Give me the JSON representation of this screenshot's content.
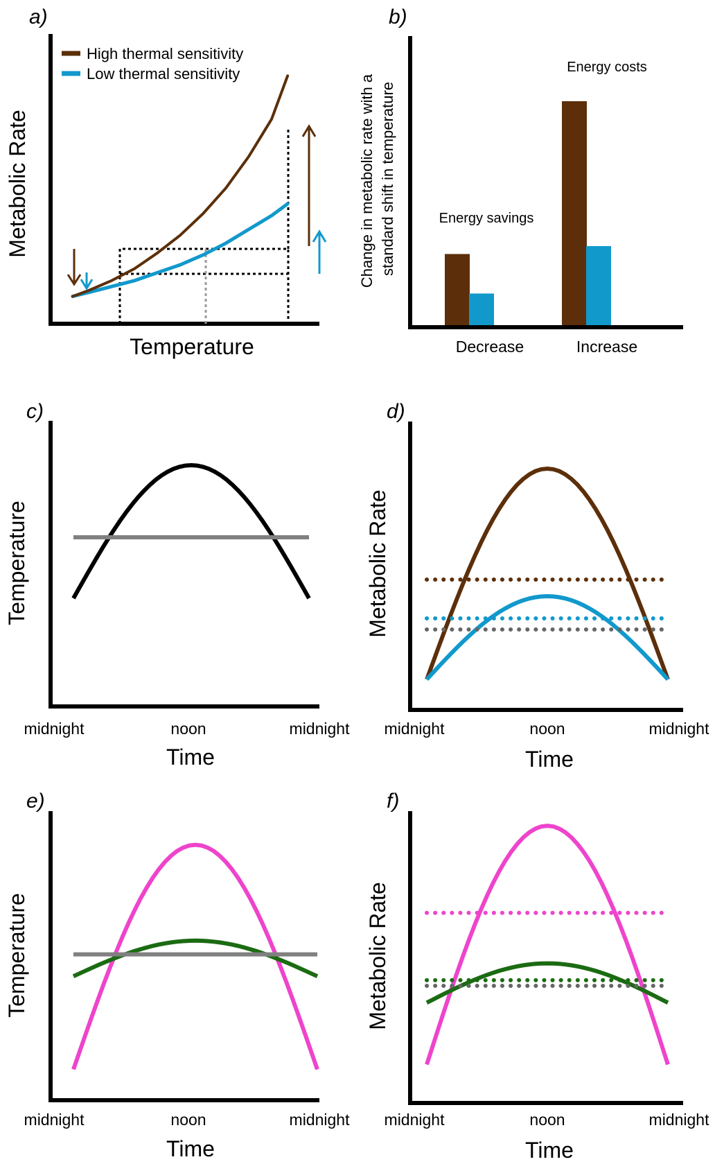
{
  "colors": {
    "high": "#5c2f0a",
    "low": "#1199cc",
    "black": "#000000",
    "gray": "#808080",
    "darkgray": "#666666",
    "magenta": "#ee44cc",
    "green": "#1b6b12"
  },
  "chart_data": [
    {
      "id": "a",
      "panel_label": "a)",
      "type": "line",
      "xlabel": "Temperature",
      "ylabel": "Metabolic Rate",
      "legend": [
        "High thermal sensitivity",
        "Low thermal sensitivity"
      ],
      "series": [
        {
          "name": "High thermal sensitivity",
          "color": "#5c2f0a",
          "x": [
            0.03,
            0.1,
            0.2,
            0.3,
            0.4,
            0.5,
            0.6,
            0.7,
            0.8,
            0.9,
            0.97
          ],
          "y": [
            0.03,
            0.06,
            0.11,
            0.17,
            0.25,
            0.34,
            0.45,
            0.58,
            0.74,
            0.93,
            1.15
          ]
        },
        {
          "name": "Low thermal sensitivity",
          "color": "#1199cc",
          "x": [
            0.03,
            0.1,
            0.2,
            0.3,
            0.4,
            0.5,
            0.6,
            0.7,
            0.8,
            0.9,
            0.97
          ],
          "y": [
            0.03,
            0.05,
            0.08,
            0.11,
            0.15,
            0.19,
            0.24,
            0.3,
            0.37,
            0.44,
            0.5
          ]
        }
      ]
    },
    {
      "id": "b",
      "panel_label": "b)",
      "type": "bar",
      "ylabel": "Change in metabolic rate with a standard shift in temperature",
      "categories": [
        "Decrease",
        "Increase"
      ],
      "series": [
        {
          "name": "High thermal sensitivity",
          "color": "#5c2f0a",
          "values": [
            0.27,
            0.85
          ]
        },
        {
          "name": "Low thermal sensitivity",
          "color": "#1199cc",
          "values": [
            0.12,
            0.3
          ]
        }
      ],
      "ylim": [
        0,
        1
      ],
      "annotations": [
        "Energy savings",
        "Energy costs"
      ]
    },
    {
      "id": "c",
      "panel_label": "c)",
      "type": "line",
      "xlabel": "Time",
      "ylabel": "Temperature",
      "xticks": [
        "midnight",
        "noon",
        "midnight"
      ],
      "series": [
        {
          "style": "solid",
          "color": "#000000",
          "x": [
            0,
            0.25,
            0.5,
            0.75,
            1
          ],
          "y": [
            0.38,
            0.72,
            0.86,
            0.72,
            0.38
          ]
        },
        {
          "style": "solid",
          "color": "#808080",
          "x": [
            0,
            1
          ],
          "y": [
            0.6,
            0.6
          ]
        }
      ]
    },
    {
      "id": "d",
      "panel_label": "d)",
      "type": "line",
      "xlabel": "Time",
      "ylabel": "Metabolic Rate",
      "xticks": [
        "midnight",
        "noon",
        "midnight"
      ],
      "series": [
        {
          "style": "solid",
          "color": "#5c2f0a",
          "x": [
            0,
            0.25,
            0.5,
            0.75,
            1
          ],
          "y": [
            0.11,
            0.61,
            0.87,
            0.61,
            0.11
          ]
        },
        {
          "style": "solid",
          "color": "#1199cc",
          "x": [
            0,
            0.25,
            0.5,
            0.75,
            1
          ],
          "y": [
            0.11,
            0.29,
            0.41,
            0.29,
            0.11
          ]
        },
        {
          "style": "dotted",
          "color": "#5c2f0a",
          "x": [
            0,
            1
          ],
          "y": [
            0.47,
            0.47
          ]
        },
        {
          "style": "dotted",
          "color": "#1199cc",
          "x": [
            0,
            1
          ],
          "y": [
            0.33,
            0.33
          ]
        },
        {
          "style": "dotted",
          "color": "#666666",
          "x": [
            0,
            1
          ],
          "y": [
            0.29,
            0.29
          ]
        }
      ]
    },
    {
      "id": "e",
      "panel_label": "e)",
      "type": "line",
      "xlabel": "Time",
      "ylabel": "Temperature",
      "xticks": [
        "midnight",
        "noon",
        "midnight"
      ],
      "series": [
        {
          "style": "solid",
          "color": "#ee44cc",
          "x": [
            0,
            0.25,
            0.5,
            0.75,
            1
          ],
          "y": [
            0.1,
            0.66,
            0.92,
            0.66,
            0.1
          ]
        },
        {
          "style": "solid",
          "color": "#1b6b12",
          "x": [
            0,
            0.25,
            0.5,
            0.75,
            1
          ],
          "y": [
            0.44,
            0.53,
            0.57,
            0.53,
            0.44
          ]
        },
        {
          "style": "solid",
          "color": "#808080",
          "x": [
            0,
            1
          ],
          "y": [
            0.52,
            0.52
          ]
        }
      ]
    },
    {
      "id": "f",
      "panel_label": "f)",
      "type": "line",
      "xlabel": "Time",
      "ylabel": "Metabolic Rate",
      "xticks": [
        "midnight",
        "noon",
        "midnight"
      ],
      "series": [
        {
          "style": "solid",
          "color": "#ee44cc",
          "x": [
            0,
            0.25,
            0.5,
            0.75,
            1
          ],
          "y": [
            0.12,
            0.69,
            0.97,
            0.69,
            0.12
          ]
        },
        {
          "style": "solid",
          "color": "#1b6b12",
          "x": [
            0,
            0.25,
            0.5,
            0.75,
            1
          ],
          "y": [
            0.34,
            0.44,
            0.48,
            0.44,
            0.34
          ]
        },
        {
          "style": "dotted",
          "color": "#ee44cc",
          "x": [
            0,
            1
          ],
          "y": [
            0.66,
            0.66
          ]
        },
        {
          "style": "dotted",
          "color": "#1b6b12",
          "x": [
            0,
            1
          ],
          "y": [
            0.42,
            0.42
          ]
        },
        {
          "style": "dotted",
          "color": "#666666",
          "x": [
            0,
            1
          ],
          "y": [
            0.4,
            0.4
          ]
        }
      ]
    }
  ]
}
